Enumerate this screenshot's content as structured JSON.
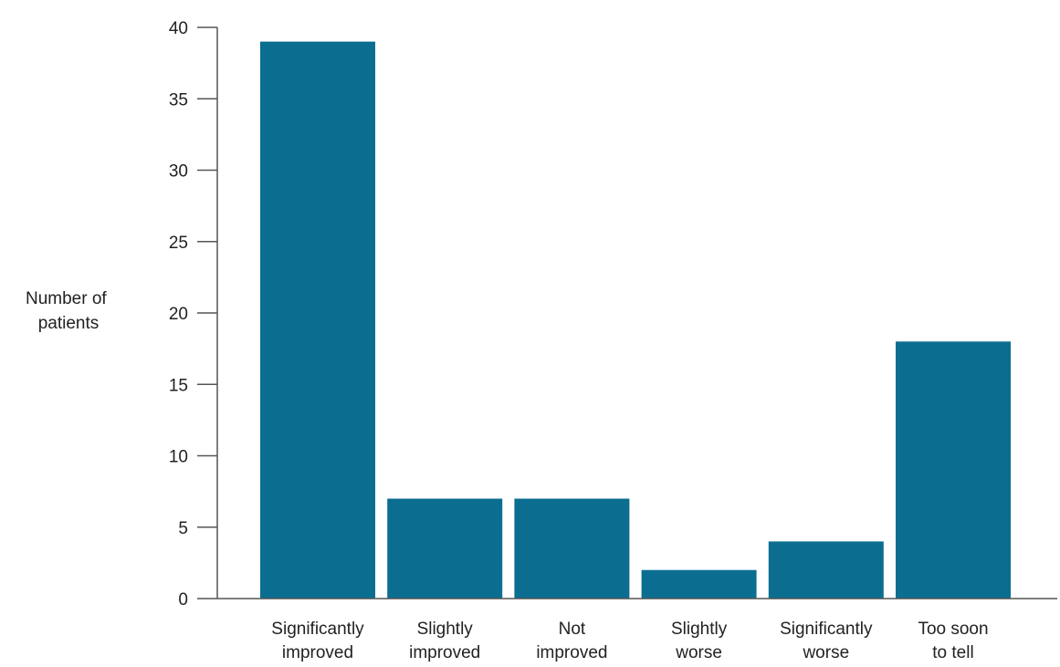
{
  "chart_data": {
    "type": "bar",
    "title": "",
    "xlabel": "",
    "ylabel": [
      "Number of",
      "patients"
    ],
    "ylim": [
      0,
      40
    ],
    "yticks": [
      0,
      5,
      10,
      15,
      20,
      25,
      30,
      35,
      40
    ],
    "grid": false,
    "categories": [
      [
        "Significantly",
        "improved"
      ],
      [
        "Slightly",
        "improved"
      ],
      [
        "Not",
        "improved"
      ],
      [
        "Slightly",
        "worse"
      ],
      [
        "Significantly",
        "worse"
      ],
      [
        "Too soon",
        "to tell"
      ]
    ],
    "values": [
      39,
      7,
      7,
      2,
      4,
      18
    ],
    "colors": {
      "bar": "#0B6E91",
      "axis": "#555555"
    }
  }
}
